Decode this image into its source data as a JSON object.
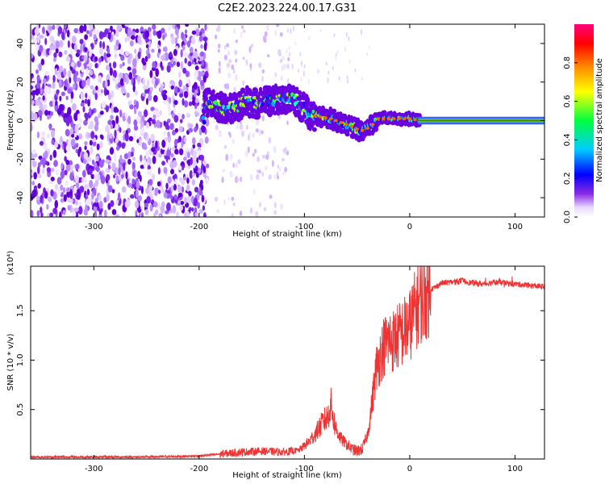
{
  "title": "C2E2.2023.224.00.17.G31",
  "colors": {
    "spectrum_scale": [
      "#ffffff",
      "#cc99ff",
      "#7700ee",
      "#0000ff",
      "#00ccff",
      "#00ff00",
      "#ffff00",
      "#ff8800",
      "#ff0000",
      "#ff0080"
    ],
    "snr_line": "#ee3333"
  },
  "chart_data": [
    {
      "type": "heatmap",
      "title": "",
      "xlabel": "Height of straight line (km)",
      "ylabel": "Frequency (Hz)",
      "xlim": [
        -360,
        128
      ],
      "ylim": [
        -50,
        50
      ],
      "x_ticks": [
        -300,
        -200,
        -100,
        0,
        100
      ],
      "x_tick_labels": [
        "-300",
        "-200",
        "-100",
        "0",
        "100"
      ],
      "y_ticks": [
        -40,
        -20,
        0,
        20,
        40
      ],
      "y_tick_labels": [
        "-40",
        "-20",
        "0",
        "20",
        "40"
      ],
      "colorbar": {
        "label": "Normalized spectral amplitude",
        "range": [
          0,
          1
        ],
        "ticks": [
          0,
          0.2,
          0.4,
          0.6,
          0.8
        ],
        "tick_labels": [
          "0.0",
          "0.2",
          "0.4",
          "0.6",
          "0.8"
        ]
      },
      "signal_ridge": {
        "height_km": [
          -195,
          -185,
          -175,
          -165,
          -155,
          -145,
          -135,
          -125,
          -115,
          -105,
          -95,
          -85,
          -75,
          -65,
          -55,
          -48,
          -44,
          -40,
          -35,
          -30,
          -20,
          -10,
          0,
          10,
          128
        ],
        "frequency_hz": [
          9,
          8,
          6,
          7,
          10,
          9,
          10,
          11,
          12,
          9,
          3,
          2,
          1,
          -1,
          -3,
          -5,
          -5,
          -4,
          -2,
          1,
          1,
          1,
          1,
          0,
          0
        ]
      }
    },
    {
      "type": "line",
      "title": "",
      "xlabel": "Height of straight line (km)",
      "ylabel": "SNR (10 * v/v)",
      "y_multiplier": "(x10⁴)",
      "xlim": [
        -360,
        128
      ],
      "ylim": [
        0,
        1.95
      ],
      "x_ticks": [
        -300,
        -200,
        -100,
        0,
        100
      ],
      "x_tick_labels": [
        "-300",
        "-200",
        "-100",
        "0",
        "100"
      ],
      "y_ticks": [
        0.5,
        1.0,
        1.5
      ],
      "y_tick_labels": [
        "0.5",
        "1.0",
        "1.5"
      ],
      "series": [
        {
          "x": [
            -360,
            -300,
            -250,
            -200,
            -180,
            -160,
            -140,
            -120,
            -105,
            -95,
            -88,
            -82,
            -78,
            -75,
            -72,
            -70,
            -65,
            -60,
            -55,
            -50,
            -45,
            -40,
            -36,
            -32,
            -28,
            -24,
            -20,
            -15,
            -10,
            -5,
            0,
            5,
            10,
            15,
            20,
            25,
            30,
            40,
            50,
            60,
            70,
            80,
            90,
            100,
            110,
            120,
            128
          ],
          "y": [
            0.02,
            0.02,
            0.02,
            0.03,
            0.05,
            0.07,
            0.08,
            0.07,
            0.09,
            0.18,
            0.28,
            0.38,
            0.42,
            0.55,
            0.38,
            0.3,
            0.2,
            0.15,
            0.1,
            0.08,
            0.1,
            0.25,
            0.55,
            0.9,
            1.05,
            1.15,
            1.2,
            1.2,
            1.25,
            1.3,
            1.35,
            1.5,
            1.6,
            1.65,
            1.72,
            1.74,
            1.78,
            1.79,
            1.8,
            1.78,
            1.77,
            1.79,
            1.78,
            1.77,
            1.76,
            1.75,
            1.74
          ]
        }
      ]
    }
  ]
}
